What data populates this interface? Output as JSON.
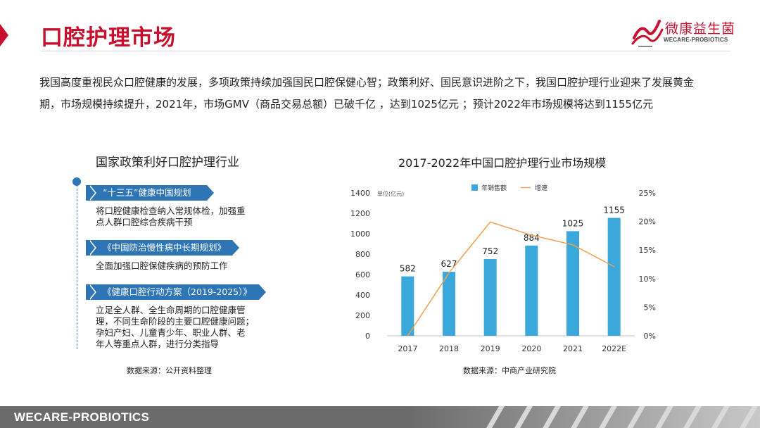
{
  "header": {
    "title": "口腔护理市场",
    "logo": {
      "name": "微康益生菌",
      "sub": "WECARE-PROBIOTICS",
      "icon": "wecare-logo-icon"
    }
  },
  "intro": "我国高度重视民众口腔健康的发展，多项政策持续加强国民口腔保健心智；政策利好、国民意识进阶之下，我国口腔护理行业迎来了发展黄金期，市场规模持续提升，2021年，市场GMV（商品交易总额）已破千亿 ，达到1025亿元 ；预计2022年市场规模将达到1155亿元",
  "policy": {
    "title": "国家政策利好口腔护理行业",
    "items": [
      {
        "tag": "“十三五”健康中国规划",
        "lines": [
          "将口腔健康检查纳入常规体检，加强重",
          "点人群口腔综合疾病干预"
        ]
      },
      {
        "tag": "《中国防治慢性病中长期规划》",
        "lines": [
          "全面加强口腔保健疾病的预防工作"
        ]
      },
      {
        "tag": "《健康口腔行动方案（2019-2025）》",
        "lines": [
          "立足全人群、全生命周期的口腔健康管",
          "理，不同生命阶段的主要口腔健康问题；",
          "孕妇产妇、儿童青少年、职业人群、老",
          "年人等重点人群，进行分类指导"
        ]
      }
    ],
    "source": "数据来源：公开资料整理"
  },
  "chart_data": {
    "type": "bar",
    "title": "2017-2022年中国口腔护理行业市场规模",
    "unit_label": "单位(亿元)",
    "categories": [
      "2017",
      "2018",
      "2019",
      "2020",
      "2021",
      "2022E"
    ],
    "series": [
      {
        "name": "年销售额",
        "type": "bar",
        "axis": "left",
        "color": "#3aa8da",
        "values": [
          582,
          627,
          752,
          884,
          1025,
          1155
        ]
      },
      {
        "name": "增速",
        "type": "line",
        "axis": "right",
        "color": "#f0a050",
        "values": [
          0.0,
          11.0,
          19.9,
          17.6,
          15.9,
          12.1
        ]
      }
    ],
    "y_left": {
      "min": 0,
      "max": 1400,
      "ticks": [
        "0",
        "200",
        "400",
        "600",
        "800",
        "1000",
        "1200",
        "1400"
      ]
    },
    "y_right": {
      "min": 0,
      "max": 25,
      "ticks": [
        "0%",
        "5%",
        "10%",
        "15%",
        "20%",
        "25%"
      ]
    },
    "data_labels": [
      "582",
      "627",
      "752",
      "884",
      "1025",
      "1155"
    ],
    "legend": "top-center",
    "grid": false,
    "source": "数据来源：中商产业研究院"
  },
  "footer": {
    "brand": "WECARE-PROBIOTICS"
  },
  "colors": {
    "accent": "#c8102e",
    "tag_blue": "#2e75b6",
    "bar": "#3aa8da",
    "line": "#f0a050"
  }
}
